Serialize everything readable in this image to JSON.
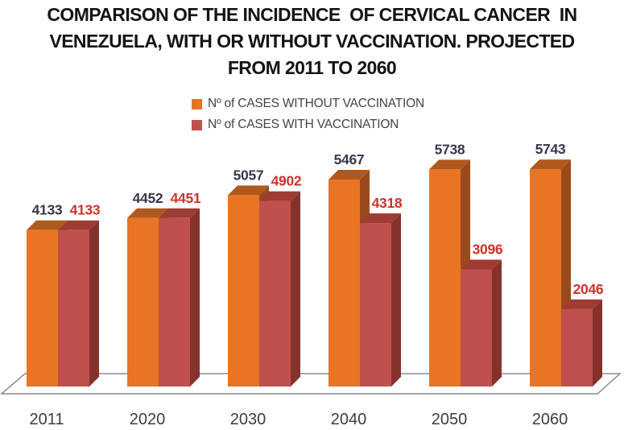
{
  "title": {
    "lines": [
      "COMPARISON OF THE INCIDENCE  OF CERVICAL CANCER  IN",
      "VENEZUELA, WITH OR WITHOUT VACCINATION. PROJECTED",
      "FROM 2011 TO 2060"
    ]
  },
  "legend": {
    "items": [
      {
        "label": "Nº of CASES WITHOUT VACCINATION",
        "color": "#E87424"
      },
      {
        "label": "Nº of CASES WITH VACCINATION",
        "color": "#C0504D"
      }
    ]
  },
  "chart_data": {
    "type": "bar",
    "style": "3d-column",
    "title": "COMPARISON OF THE INCIDENCE OF CERVICAL CANCER IN VENEZUELA, WITH OR WITHOUT VACCINATION. PROJECTED FROM 2011 TO 2060",
    "categories": [
      "2011",
      "2020",
      "2030",
      "2040",
      "2050",
      "2060"
    ],
    "series": [
      {
        "name": "Nº of CASES WITHOUT VACCINATION",
        "values": [
          4133,
          4452,
          5057,
          5467,
          5738,
          5743
        ],
        "front_color": "#E87424",
        "top_color": "#B0591E",
        "side_color": "#9A4A1A",
        "label_color": "#3A374B"
      },
      {
        "name": "Nº of CASES WITH VACCINATION",
        "values": [
          4133,
          4451,
          4902,
          4318,
          3096,
          2046
        ],
        "front_color": "#C0504D",
        "top_color": "#9E3B33",
        "side_color": "#84322C",
        "label_color": "#CC332B"
      }
    ],
    "data_labels": true,
    "grid": false,
    "legend_position": "top-center",
    "xlabel": "",
    "ylabel": "",
    "floor_stroke_color": "#8C8C8C"
  }
}
